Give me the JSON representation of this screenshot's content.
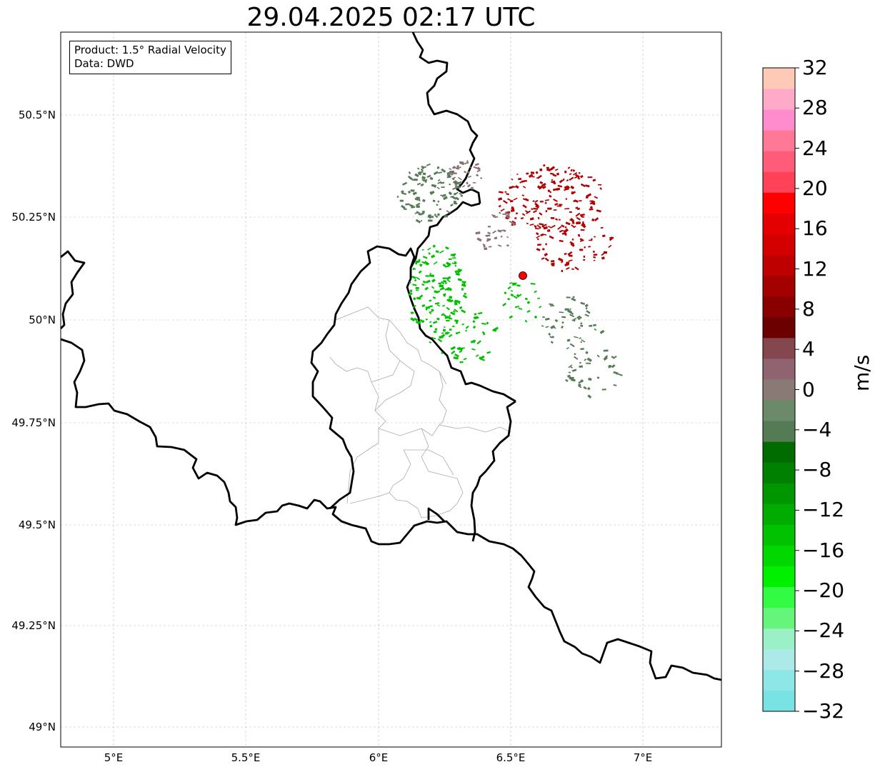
{
  "title": "29.04.2025 02:17 UTC",
  "info": {
    "product": "Product: 1.5° Radial Velocity",
    "source": "Data: DWD"
  },
  "axes": {
    "lat_ticks": [
      "50.5°N",
      "50.25°N",
      "50°N",
      "49.75°N",
      "49.5°N",
      "49.25°N",
      "49°N"
    ],
    "lon_ticks": [
      "5°E",
      "5.5°E",
      "6°E",
      "6.5°E",
      "7°E"
    ]
  },
  "colorbar": {
    "label": "m/s",
    "ticks": [
      "32",
      "28",
      "24",
      "20",
      "16",
      "12",
      "8",
      "4",
      "0",
      "−4",
      "−8",
      "−12",
      "−16",
      "−20",
      "−24",
      "−28",
      "−32"
    ],
    "range": [
      -32,
      32
    ],
    "colors": [
      "#79e3e3",
      "#8de7e7",
      "#aceaea",
      "#9bf0c6",
      "#66f57b",
      "#33fb44",
      "#00f000",
      "#00d800",
      "#00c200",
      "#00ac00",
      "#009600",
      "#008000",
      "#006c00",
      "#557b55",
      "#6a8a6a",
      "#8a7a75",
      "#8f6470",
      "#85474e",
      "#6c0000",
      "#880000",
      "#a40000",
      "#be0000",
      "#d40000",
      "#e40000",
      "#ff0000",
      "#ff4257",
      "#ff5c7a",
      "#ff7896",
      "#ff8ccc",
      "#ffaac8",
      "#ffc9b8"
    ]
  },
  "map": {
    "lat_range": [
      48.96,
      50.7
    ],
    "lon_range": [
      4.8,
      7.3
    ],
    "radar_site": {
      "lat": 50.11,
      "lon": 6.55,
      "color": "#ff0000"
    },
    "grid": true,
    "echo_palette": {
      "strong_inbound": "#00c000",
      "weak_inbound": "#567b56",
      "near_zero": "#8a6f74",
      "outbound": "#b00000"
    }
  }
}
